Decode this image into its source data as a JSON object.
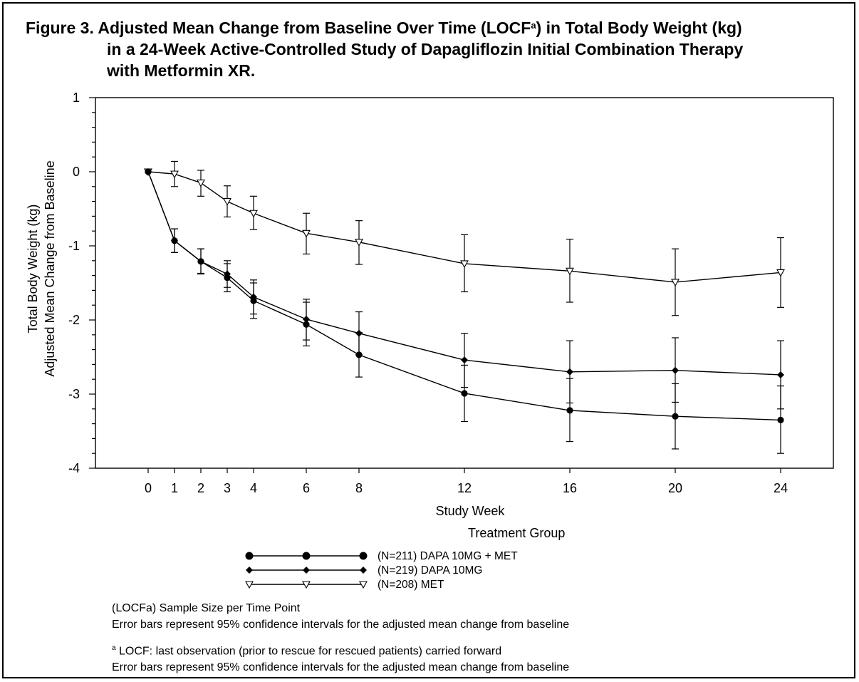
{
  "title": {
    "line1_pre": "Figure 3. Adjusted Mean Change from Baseline Over Time (LOCF",
    "line1_sup": "a",
    "line1_post": ") in Total Body Weight (kg)",
    "line2": "in a 24-Week Active-Controlled Study of Dapagliflozin Initial Combination Therapy",
    "line3": "with Metformin XR."
  },
  "chart_data": {
    "type": "line",
    "xlabel": "Study Week",
    "ylabel": [
      "Total Body Weight (kg)",
      "Adjusted Mean Change from Baseline"
    ],
    "xlim": [
      -2,
      26
    ],
    "ylim": [
      -4,
      1
    ],
    "xticks": [
      0,
      1,
      2,
      3,
      4,
      6,
      8,
      12,
      16,
      20,
      24
    ],
    "yticks": [
      1,
      0,
      -1,
      -2,
      -3,
      -4
    ],
    "ytick_labels": [
      "1",
      "0",
      "-1",
      "-2",
      "-3",
      "-4"
    ],
    "grid": false,
    "legend_title": "Treatment Group",
    "legend_position": "below plot",
    "series": [
      {
        "name": "(N=211) DAPA 10MG + MET",
        "marker": "filled-circle",
        "x": [
          0,
          1,
          2,
          3,
          4,
          6,
          8,
          12,
          16,
          20,
          24
        ],
        "y": [
          0,
          -0.93,
          -1.21,
          -1.43,
          -1.74,
          -2.06,
          -2.47,
          -2.99,
          -3.22,
          -3.3,
          -3.35
        ],
        "ci_low": [
          0,
          -1.09,
          -1.37,
          -1.62,
          -1.98,
          -2.35,
          -2.77,
          -3.37,
          -3.64,
          -3.74,
          -3.8
        ],
        "ci_high": [
          0,
          -0.77,
          -1.04,
          -1.24,
          -1.5,
          -1.76,
          -2.17,
          -2.61,
          -2.79,
          -2.86,
          -2.89
        ]
      },
      {
        "name": "(N=219) DAPA 10MG",
        "marker": "filled-diamond",
        "x": [
          0,
          1,
          2,
          3,
          4,
          6,
          8,
          12,
          16,
          20,
          24
        ],
        "y": [
          0,
          -0.93,
          -1.21,
          -1.38,
          -1.69,
          -1.99,
          -2.18,
          -2.54,
          -2.7,
          -2.68,
          -2.74
        ],
        "ci_low": [
          0,
          -1.09,
          -1.38,
          -1.56,
          -1.92,
          -2.27,
          -2.47,
          -2.91,
          -3.12,
          -3.11,
          -3.2
        ],
        "ci_high": [
          0,
          -0.77,
          -1.04,
          -1.2,
          -1.46,
          -1.72,
          -1.89,
          -2.18,
          -2.28,
          -2.24,
          -2.28
        ]
      },
      {
        "name": "(N=208) MET",
        "marker": "open-triangle-down",
        "x": [
          0,
          1,
          2,
          3,
          4,
          6,
          8,
          12,
          16,
          20,
          24
        ],
        "y": [
          0,
          -0.03,
          -0.15,
          -0.4,
          -0.56,
          -0.83,
          -0.95,
          -1.24,
          -1.34,
          -1.49,
          -1.36
        ],
        "ci_low": [
          0,
          -0.2,
          -0.33,
          -0.61,
          -0.78,
          -1.11,
          -1.25,
          -1.62,
          -1.76,
          -1.94,
          -1.83
        ],
        "ci_high": [
          0,
          0.14,
          0.02,
          -0.19,
          -0.33,
          -0.56,
          -0.66,
          -0.85,
          -0.91,
          -1.04,
          -0.89
        ]
      }
    ]
  },
  "footnotes": {
    "line1": "(LOCFa) Sample Size per Time Point",
    "line2": "Error bars represent 95% confidence intervals for the adjusted mean change from baseline",
    "line3_sup": "a",
    "line3": " LOCF: last observation (prior to rescue for rescued patients) carried forward",
    "line4": "Error bars represent 95% confidence intervals for the adjusted mean change from baseline"
  }
}
